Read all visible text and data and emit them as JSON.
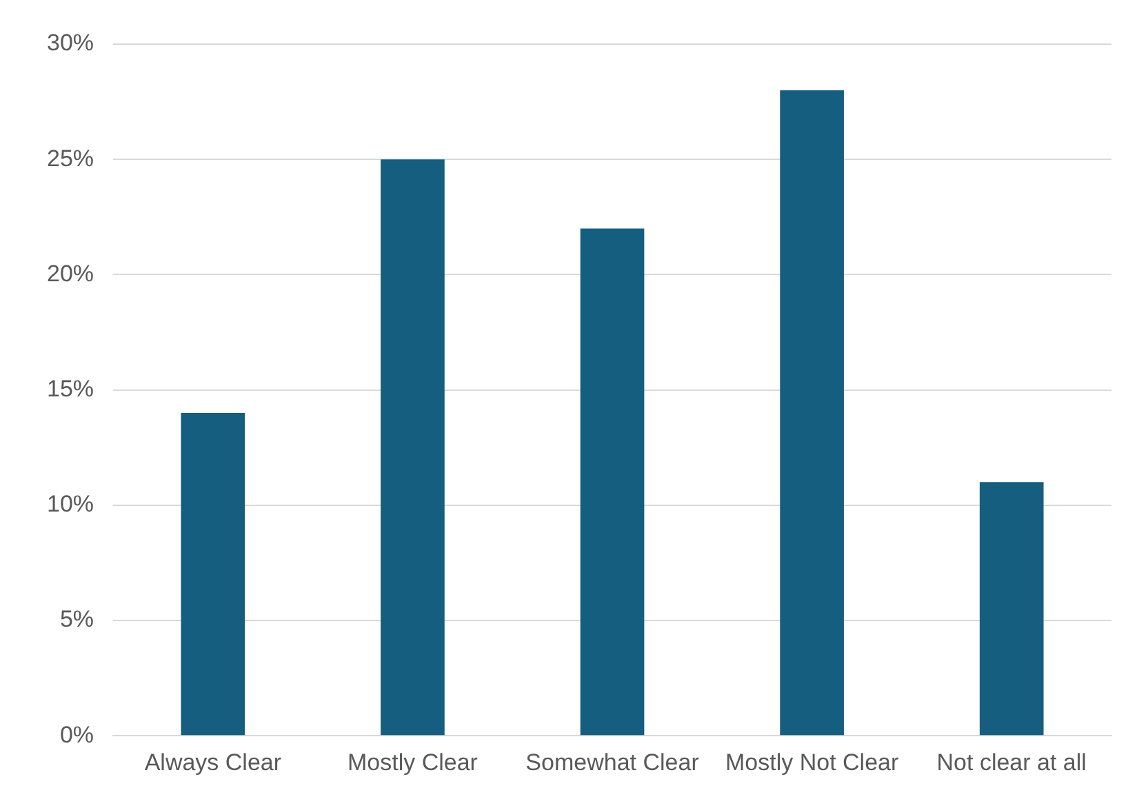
{
  "chart_data": {
    "type": "bar",
    "categories": [
      "Always Clear",
      "Mostly Clear",
      "Somewhat Clear",
      "Mostly Not Clear",
      "Not clear at all"
    ],
    "values": [
      14,
      25,
      22,
      28,
      11
    ],
    "color": "#155e7f",
    "ylim": [
      0,
      30
    ],
    "yticks": [
      {
        "value": 0,
        "label": "0%"
      },
      {
        "value": 5,
        "label": "5%"
      },
      {
        "value": 10,
        "label": "10%"
      },
      {
        "value": 15,
        "label": "15%"
      },
      {
        "value": 20,
        "label": "20%"
      },
      {
        "value": 25,
        "label": "25%"
      },
      {
        "value": 30,
        "label": "30%"
      }
    ],
    "grid": "y",
    "legend": false
  }
}
